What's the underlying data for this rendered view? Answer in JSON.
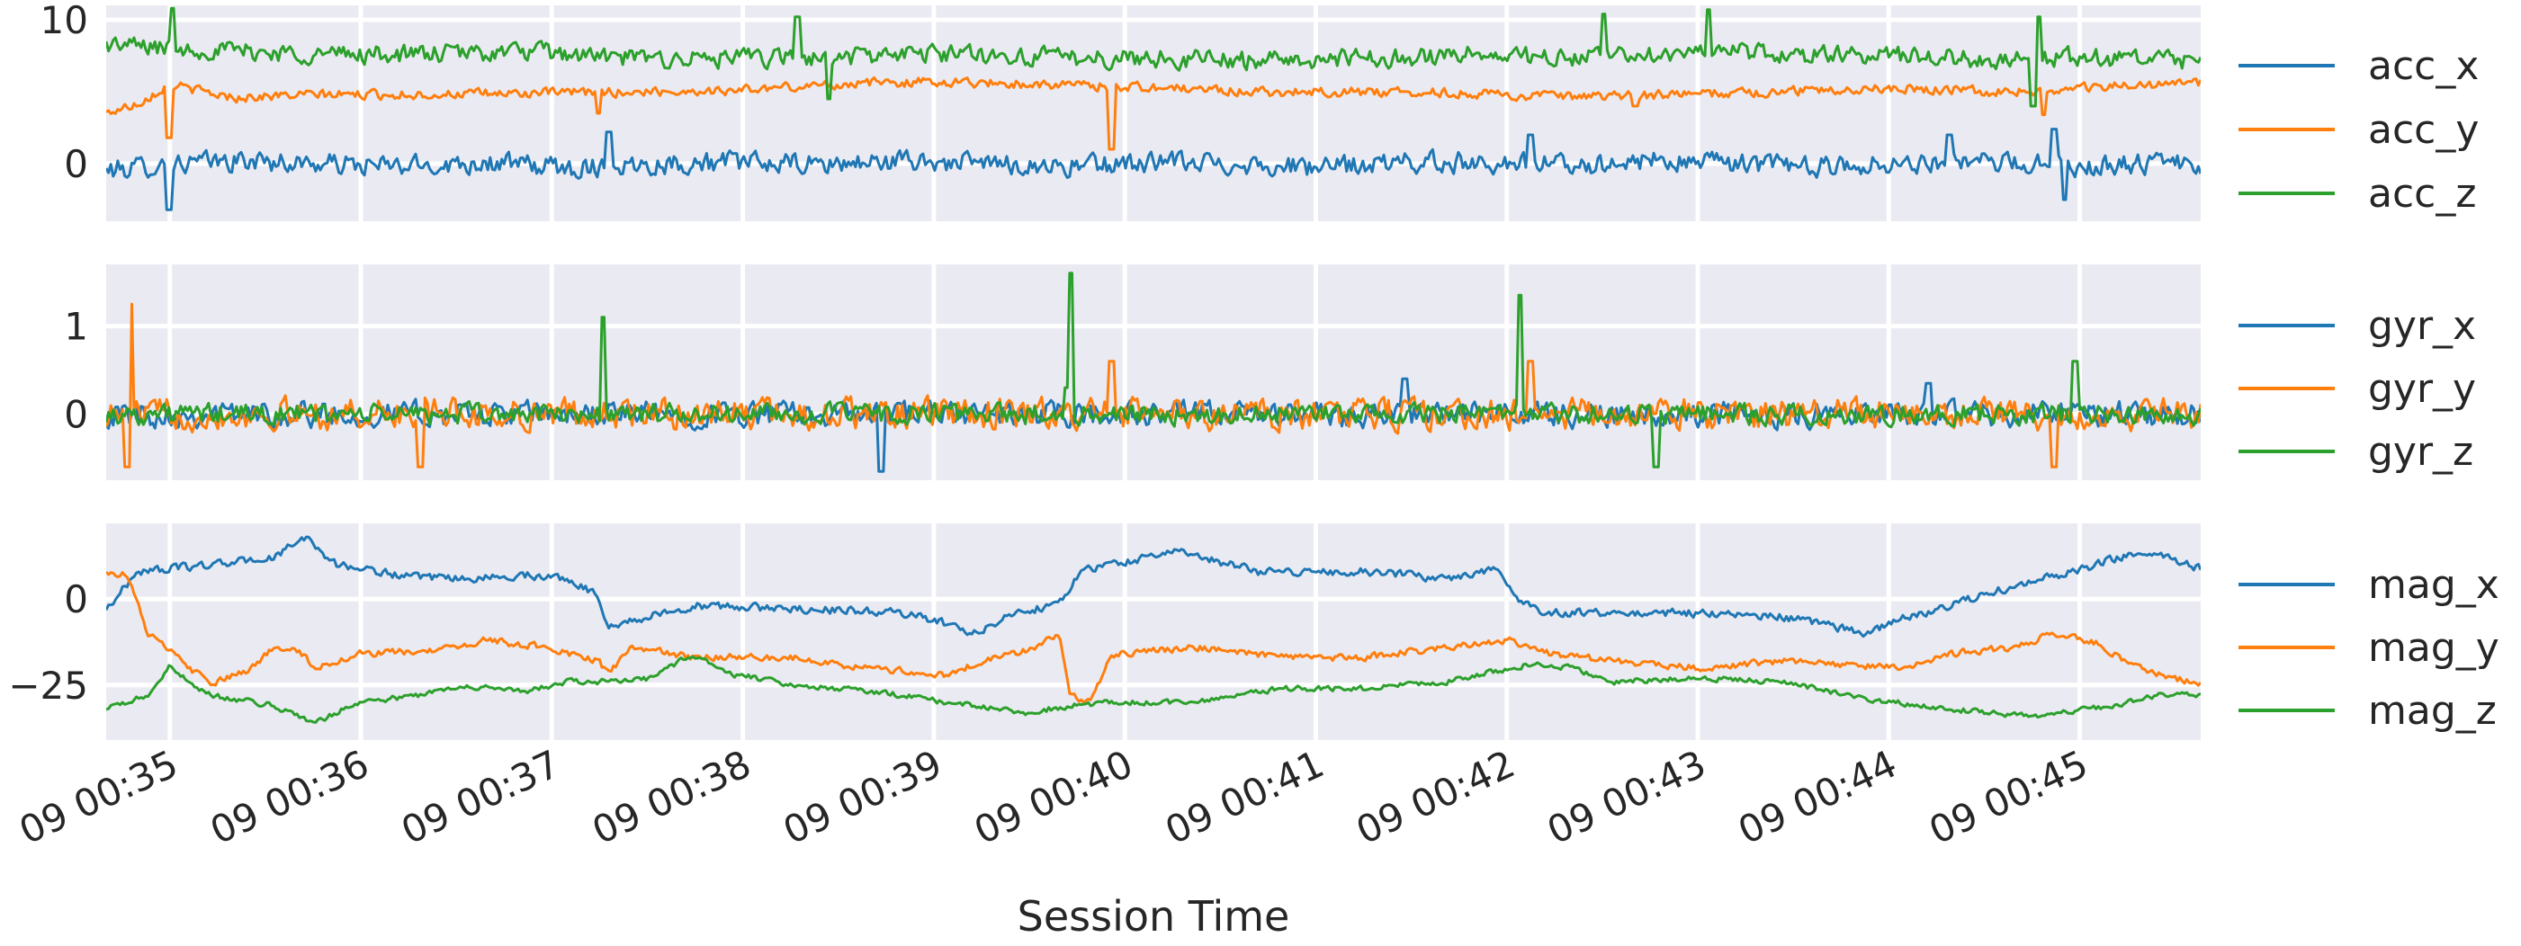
{
  "chart_data": {
    "type": "line",
    "xlabel": "Session Time",
    "x_range": [
      "09 00:34:40",
      "09 00:45:38"
    ],
    "x_ticks": [
      "09 00:35",
      "09 00:36",
      "09 00:37",
      "09 00:38",
      "09 00:39",
      "09 00:40",
      "09 00:41",
      "09 00:42",
      "09 00:43",
      "09 00:44",
      "09 00:45"
    ],
    "grid": true,
    "legend_placement": "right, outside each panel",
    "colors": {
      "blue": "#1f77b4",
      "orange": "#ff7f0e",
      "green": "#2ca02c",
      "panel_bg": "#eaeaf2",
      "grid": "#ffffff"
    },
    "panels": [
      {
        "ylim": [
          -4,
          11
        ],
        "y_ticks": [
          0,
          10
        ],
        "y_tick_labels": [
          "0",
          "10"
        ],
        "series": [
          {
            "name": "acc_x",
            "color": "#1f77b4",
            "base": [
              [
                0,
                -0.5
              ],
              [
                3,
                0
              ],
              [
                7,
                0.2
              ],
              [
                10,
                0
              ],
              [
                14,
                -0.2
              ],
              [
                18,
                0.1
              ],
              [
                22,
                -0.3
              ],
              [
                26,
                0
              ],
              [
                30,
                0.1
              ],
              [
                34,
                -0.1
              ],
              [
                38,
                0.2
              ],
              [
                42,
                0
              ],
              [
                46,
                -0.2
              ],
              [
                50,
                0.1
              ],
              [
                54,
                0
              ],
              [
                58,
                -0.3
              ],
              [
                62,
                0.1
              ],
              [
                66,
                0.1
              ],
              [
                70,
                -0.1
              ],
              [
                74,
                0.2
              ],
              [
                78,
                0
              ],
              [
                82,
                -0.2
              ],
              [
                86,
                0.1
              ],
              [
                90,
                0
              ],
              [
                94,
                -0.1
              ],
              [
                98,
                0
              ],
              [
                100,
                -0.2
              ]
            ],
            "noise": 1.0,
            "spikes": [
              [
                3,
                -3.2
              ],
              [
                24,
                2.2
              ],
              [
                68,
                2
              ],
              [
                88,
                2
              ],
              [
                93,
                2.4
              ],
              [
                93.5,
                -2.5
              ]
            ]
          },
          {
            "name": "acc_y",
            "color": "#ff7f0e",
            "base": [
              [
                0,
                3.5
              ],
              [
                1.5,
                4.2
              ],
              [
                3,
                5.5
              ],
              [
                6,
                4.6
              ],
              [
                10,
                4.8
              ],
              [
                15,
                4.8
              ],
              [
                20,
                4.9
              ],
              [
                26,
                5.0
              ],
              [
                30,
                5.1
              ],
              [
                36,
                5.6
              ],
              [
                40,
                5.7
              ],
              [
                45,
                5.5
              ],
              [
                50,
                5.3
              ],
              [
                55,
                5.0
              ],
              [
                60,
                5.0
              ],
              [
                65,
                4.9
              ],
              [
                70,
                4.6
              ],
              [
                75,
                4.8
              ],
              [
                80,
                5.0
              ],
              [
                85,
                5.3
              ],
              [
                90,
                5.0
              ],
              [
                94,
                5.2
              ],
              [
                97,
                5.5
              ],
              [
                100,
                5.6
              ]
            ],
            "noise": 0.45,
            "spikes": [
              [
                3,
                1.8
              ],
              [
                23.5,
                3.5
              ],
              [
                48,
                1.0
              ],
              [
                73,
                4.0
              ],
              [
                92.5,
                3.4
              ]
            ]
          },
          {
            "name": "acc_z",
            "color": "#2ca02c",
            "base": [
              [
                0,
                8.3
              ],
              [
                5,
                7.9
              ],
              [
                10,
                7.6
              ],
              [
                15,
                7.6
              ],
              [
                20,
                7.8
              ],
              [
                25,
                7.3
              ],
              [
                30,
                7.3
              ],
              [
                35,
                7.4
              ],
              [
                40,
                7.7
              ],
              [
                45,
                7.4
              ],
              [
                50,
                7.3
              ],
              [
                55,
                7.2
              ],
              [
                60,
                7.3
              ],
              [
                65,
                7.6
              ],
              [
                70,
                7.3
              ],
              [
                75,
                7.8
              ],
              [
                80,
                7.6
              ],
              [
                85,
                7.5
              ],
              [
                90,
                7.3
              ],
              [
                95,
                7.4
              ],
              [
                100,
                7.0
              ]
            ],
            "noise": 0.9,
            "spikes": [
              [
                3.2,
                10.8
              ],
              [
                34.5,
                4.5
              ],
              [
                33,
                10.2
              ],
              [
                71.5,
                10.4
              ],
              [
                76.5,
                10.7
              ],
              [
                92,
                4.0
              ],
              [
                92.3,
                10.2
              ]
            ]
          }
        ]
      },
      {
        "ylim": [
          -0.75,
          1.7
        ],
        "y_ticks": [
          0,
          1
        ],
        "y_tick_labels": [
          "0",
          "1"
        ],
        "series": [
          {
            "name": "gyr_x",
            "color": "#1f77b4",
            "base": [
              [
                0,
                0
              ],
              [
                100,
                0
              ]
            ],
            "noise": 0.2,
            "spikes": [
              [
                37,
                -0.65
              ],
              [
                62,
                0.4
              ],
              [
                87,
                0.35
              ]
            ]
          },
          {
            "name": "gyr_y",
            "color": "#ff7f0e",
            "base": [
              [
                0,
                0
              ],
              [
                100,
                0
              ]
            ],
            "noise": 0.24,
            "spikes": [
              [
                1.2,
                1.25
              ],
              [
                1.0,
                -0.6
              ],
              [
                15,
                -0.6
              ],
              [
                48,
                0.6
              ],
              [
                68,
                0.6
              ],
              [
                93,
                -0.6
              ]
            ]
          },
          {
            "name": "gyr_z",
            "color": "#2ca02c",
            "base": [
              [
                0,
                0
              ],
              [
                100,
                0
              ]
            ],
            "noise": 0.16,
            "spikes": [
              [
                23.7,
                1.1
              ],
              [
                46,
                1.6
              ],
              [
                45.8,
                0.3
              ],
              [
                67.5,
                1.35
              ],
              [
                74,
                -0.6
              ],
              [
                94,
                0.6
              ]
            ]
          }
        ]
      },
      {
        "ylim": [
          -41,
          22
        ],
        "y_ticks": [
          0,
          -25
        ],
        "y_tick_labels": [
          "0",
          "−25"
        ],
        "series": [
          {
            "name": "mag_x",
            "color": "#1f77b4",
            "base": [
              [
                0,
                -3
              ],
              [
                1.5,
                8
              ],
              [
                5,
                10
              ],
              [
                8,
                12
              ],
              [
                9.5,
                18
              ],
              [
                11,
                10
              ],
              [
                15,
                6
              ],
              [
                18,
                6
              ],
              [
                20,
                7
              ],
              [
                22,
                6
              ],
              [
                23.5,
                1
              ],
              [
                24,
                -8
              ],
              [
                28,
                -2
              ],
              [
                34,
                -3
              ],
              [
                38,
                -4
              ],
              [
                40,
                -7
              ],
              [
                41.5,
                -10
              ],
              [
                43,
                -5
              ],
              [
                45.5,
                -1
              ],
              [
                46.5,
                8
              ],
              [
                51,
                14
              ],
              [
                55,
                8
              ],
              [
                60,
                8
              ],
              [
                64,
                6
              ],
              [
                66.5,
                9
              ],
              [
                67.5,
                0
              ],
              [
                68.5,
                -4
              ],
              [
                75,
                -4
              ],
              [
                80,
                -5
              ],
              [
                84,
                -10
              ],
              [
                85.5,
                -6
              ],
              [
                88,
                -2
              ],
              [
                90,
                2
              ],
              [
                92,
                5
              ],
              [
                95,
                10
              ],
              [
                97,
                14
              ],
              [
                100,
                9
              ]
            ],
            "noise": 1.6,
            "spikes": []
          },
          {
            "name": "mag_y",
            "color": "#ff7f0e",
            "base": [
              [
                0,
                8
              ],
              [
                1,
                7
              ],
              [
                2,
                -10
              ],
              [
                4,
                -20
              ],
              [
                5,
                -25
              ],
              [
                7,
                -20
              ],
              [
                8,
                -14
              ],
              [
                9,
                -14
              ],
              [
                10,
                -20
              ],
              [
                12,
                -16
              ],
              [
                16,
                -15
              ],
              [
                18,
                -12
              ],
              [
                21,
                -14
              ],
              [
                23.5,
                -18
              ],
              [
                24,
                -22
              ],
              [
                25,
                -14
              ],
              [
                28,
                -17
              ],
              [
                33,
                -17
              ],
              [
                36,
                -20
              ],
              [
                40,
                -22
              ],
              [
                42.5,
                -17
              ],
              [
                44,
                -15
              ],
              [
                45.5,
                -10
              ],
              [
                46,
                -28
              ],
              [
                47,
                -30
              ],
              [
                48,
                -16
              ],
              [
                52,
                -14
              ],
              [
                56,
                -17
              ],
              [
                60,
                -17
              ],
              [
                64,
                -14
              ],
              [
                67,
                -12
              ],
              [
                69,
                -16
              ],
              [
                72,
                -18
              ],
              [
                76,
                -20
              ],
              [
                80,
                -18
              ],
              [
                86,
                -20
              ],
              [
                88,
                -16
              ],
              [
                91,
                -14
              ],
              [
                93,
                -10
              ],
              [
                95,
                -13
              ],
              [
                97,
                -20
              ],
              [
                100,
                -25
              ]
            ],
            "noise": 1.4,
            "spikes": []
          },
          {
            "name": "mag_z",
            "color": "#2ca02c",
            "base": [
              [
                0,
                -32
              ],
              [
                1,
                -30
              ],
              [
                2,
                -28
              ],
              [
                3,
                -20
              ],
              [
                5,
                -28
              ],
              [
                8,
                -31
              ],
              [
                10,
                -36
              ],
              [
                12,
                -30
              ],
              [
                15,
                -28
              ],
              [
                17,
                -25
              ],
              [
                20,
                -27
              ],
              [
                22,
                -24
              ],
              [
                24,
                -24
              ],
              [
                26,
                -23
              ],
              [
                28,
                -16
              ],
              [
                30,
                -22
              ],
              [
                33,
                -25
              ],
              [
                37,
                -27
              ],
              [
                40,
                -30
              ],
              [
                44,
                -33
              ],
              [
                46,
                -31
              ],
              [
                48,
                -30
              ],
              [
                52,
                -30
              ],
              [
                56,
                -26
              ],
              [
                60,
                -26
              ],
              [
                64,
                -24
              ],
              [
                67,
                -20
              ],
              [
                68,
                -19
              ],
              [
                70,
                -20
              ],
              [
                72,
                -24
              ],
              [
                76,
                -23
              ],
              [
                80,
                -24
              ],
              [
                84,
                -29
              ],
              [
                88,
                -32
              ],
              [
                92,
                -34
              ],
              [
                96,
                -31
              ],
              [
                98,
                -28
              ],
              [
                100,
                -28
              ]
            ],
            "noise": 1.1,
            "spikes": []
          }
        ]
      }
    ]
  }
}
